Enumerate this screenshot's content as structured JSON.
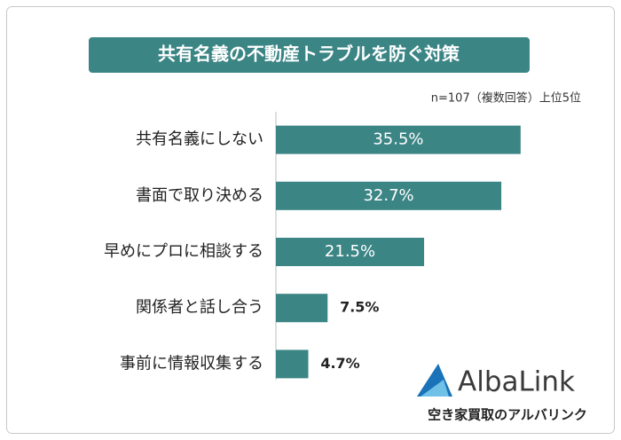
{
  "chart_data": {
    "type": "bar",
    "orientation": "horizontal",
    "title": "共有名義の不動産トラブルを防ぐ対策",
    "note": "n=107（複数回答）上位5位",
    "categories": [
      "共有名義にしない",
      "書面で取り決める",
      "早めにプロに相談する",
      "関係者と話し合う",
      "事前に情報収集する"
    ],
    "values": [
      35.5,
      32.7,
      21.5,
      7.5,
      4.7
    ],
    "value_labels": [
      "35.5%",
      "32.7%",
      "21.5%",
      "7.5%",
      "4.7%"
    ],
    "color": "#3c8585"
  },
  "logo": {
    "name": "AlbaLink",
    "tagline": "空き家買取のアルバリンク"
  }
}
